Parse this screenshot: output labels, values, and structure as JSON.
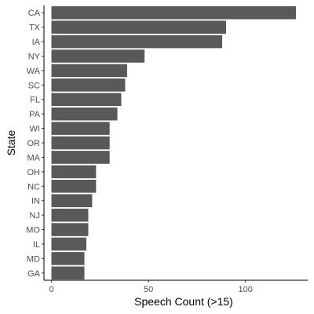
{
  "chart_data": {
    "type": "bar",
    "orientation": "horizontal",
    "categories": [
      "CA",
      "TX",
      "IA",
      "NY",
      "WA",
      "SC",
      "FL",
      "PA",
      "WI",
      "OR",
      "MA",
      "OH",
      "NC",
      "IN",
      "NJ",
      "MO",
      "IL",
      "MD",
      "GA"
    ],
    "values": [
      126,
      90,
      88,
      48,
      39,
      38,
      36,
      34,
      30,
      30,
      30,
      23,
      23,
      21,
      19,
      19,
      18,
      17,
      17
    ],
    "title": "",
    "xlabel": "Speech Count (>15)",
    "ylabel": "State",
    "xlim": [
      0,
      135
    ],
    "x_ticks": [
      0,
      50,
      100
    ],
    "grid": false,
    "bar_color": "#595959",
    "axis_color": "#000000",
    "tick_label_color": "#4d4d4d"
  }
}
